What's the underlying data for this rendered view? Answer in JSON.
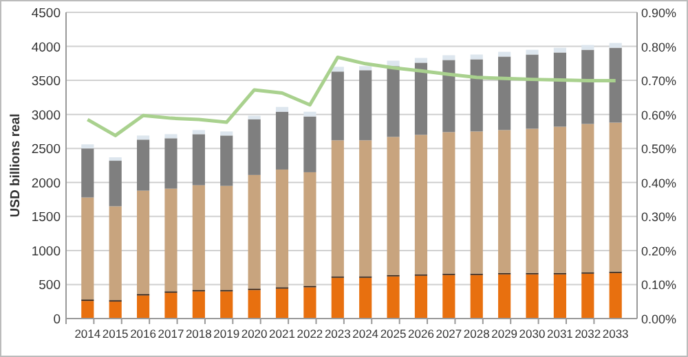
{
  "chart_data": {
    "type": "bar",
    "stacked": true,
    "ylabel": "USD billions real",
    "categories": [
      "2014",
      "2015",
      "2016",
      "2017",
      "2018",
      "2019",
      "2020",
      "2021",
      "2022",
      "2023",
      "2024",
      "2025",
      "2026",
      "2027",
      "2028",
      "2029",
      "2030",
      "2031",
      "2032",
      "2033"
    ],
    "ylim": [
      0,
      4500
    ],
    "yticks": [
      0,
      500,
      1000,
      1500,
      2000,
      2500,
      3000,
      3500,
      4000,
      4500
    ],
    "y2lim": [
      0,
      0.9
    ],
    "y2ticks": [
      {
        "value": 0,
        "label": "0.00%"
      },
      {
        "value": 0.1,
        "label": "0.10%"
      },
      {
        "value": 0.2,
        "label": "0.20%"
      },
      {
        "value": 0.3,
        "label": "0.30%"
      },
      {
        "value": 0.4,
        "label": "0.40%"
      },
      {
        "value": 0.5,
        "label": "0.50%"
      },
      {
        "value": 0.6,
        "label": "0.60%"
      },
      {
        "value": 0.7,
        "label": "0.70%"
      },
      {
        "value": 0.8,
        "label": "0.80%"
      },
      {
        "value": 0.9,
        "label": "0.90%"
      }
    ],
    "grid": "y",
    "series": [
      {
        "color": "#e8700f",
        "values": [
          260,
          250,
          340,
          380,
          400,
          400,
          420,
          440,
          460,
          600,
          600,
          620,
          630,
          640,
          640,
          650,
          650,
          650,
          660,
          670
        ]
      },
      {
        "color": "#2b1a0e",
        "values": [
          20,
          20,
          20,
          20,
          20,
          20,
          20,
          20,
          20,
          20,
          20,
          20,
          20,
          20,
          20,
          20,
          20,
          20,
          20,
          20
        ]
      },
      {
        "color": "#c8a47e",
        "values": [
          1500,
          1380,
          1520,
          1510,
          1540,
          1530,
          1670,
          1730,
          1670,
          2000,
          2000,
          2030,
          2050,
          2080,
          2090,
          2100,
          2120,
          2150,
          2180,
          2190
        ]
      },
      {
        "color": "#7f7f7f",
        "values": [
          720,
          670,
          750,
          740,
          750,
          740,
          820,
          850,
          820,
          1010,
          1030,
          1040,
          1060,
          1060,
          1060,
          1080,
          1090,
          1090,
          1090,
          1100
        ]
      },
      {
        "color": "#dde6ee",
        "values": [
          60,
          50,
          60,
          60,
          60,
          60,
          50,
          70,
          70,
          70,
          60,
          80,
          70,
          70,
          70,
          70,
          70,
          70,
          70,
          70
        ]
      },
      {
        "type": "line",
        "axis": "y2",
        "color": "#a9d18e",
        "marker": "none",
        "values": [
          0.585,
          0.538,
          0.597,
          0.589,
          0.585,
          0.577,
          0.672,
          0.663,
          0.628,
          0.768,
          0.749,
          0.737,
          0.728,
          0.718,
          0.709,
          0.706,
          0.703,
          0.701,
          0.699,
          0.699
        ]
      }
    ]
  }
}
